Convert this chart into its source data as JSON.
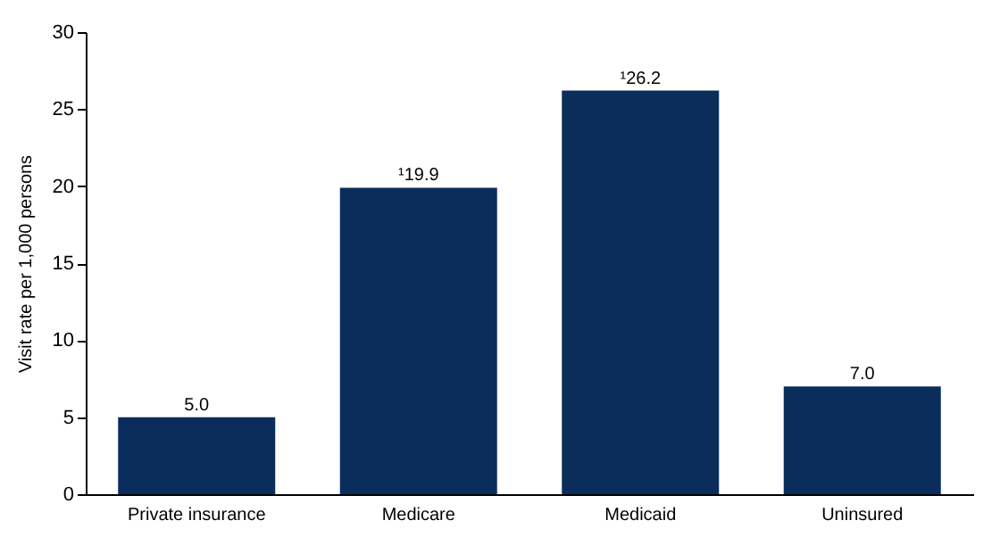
{
  "chart_data": {
    "type": "bar",
    "ylabel": "Visit rate per 1,000 persons",
    "categories": [
      "Private insurance",
      "Medicare",
      "Medicaid",
      "Uninsured"
    ],
    "values": [
      5.0,
      19.9,
      26.2,
      7.0
    ],
    "value_labels": [
      "5.0",
      "¹19.9",
      "¹26.2",
      "7.0"
    ],
    "color": "#0b2d5b",
    "ylim": [
      0,
      30
    ],
    "yticks": [
      0,
      5,
      10,
      15,
      20,
      25,
      30
    ],
    "grid": false
  }
}
